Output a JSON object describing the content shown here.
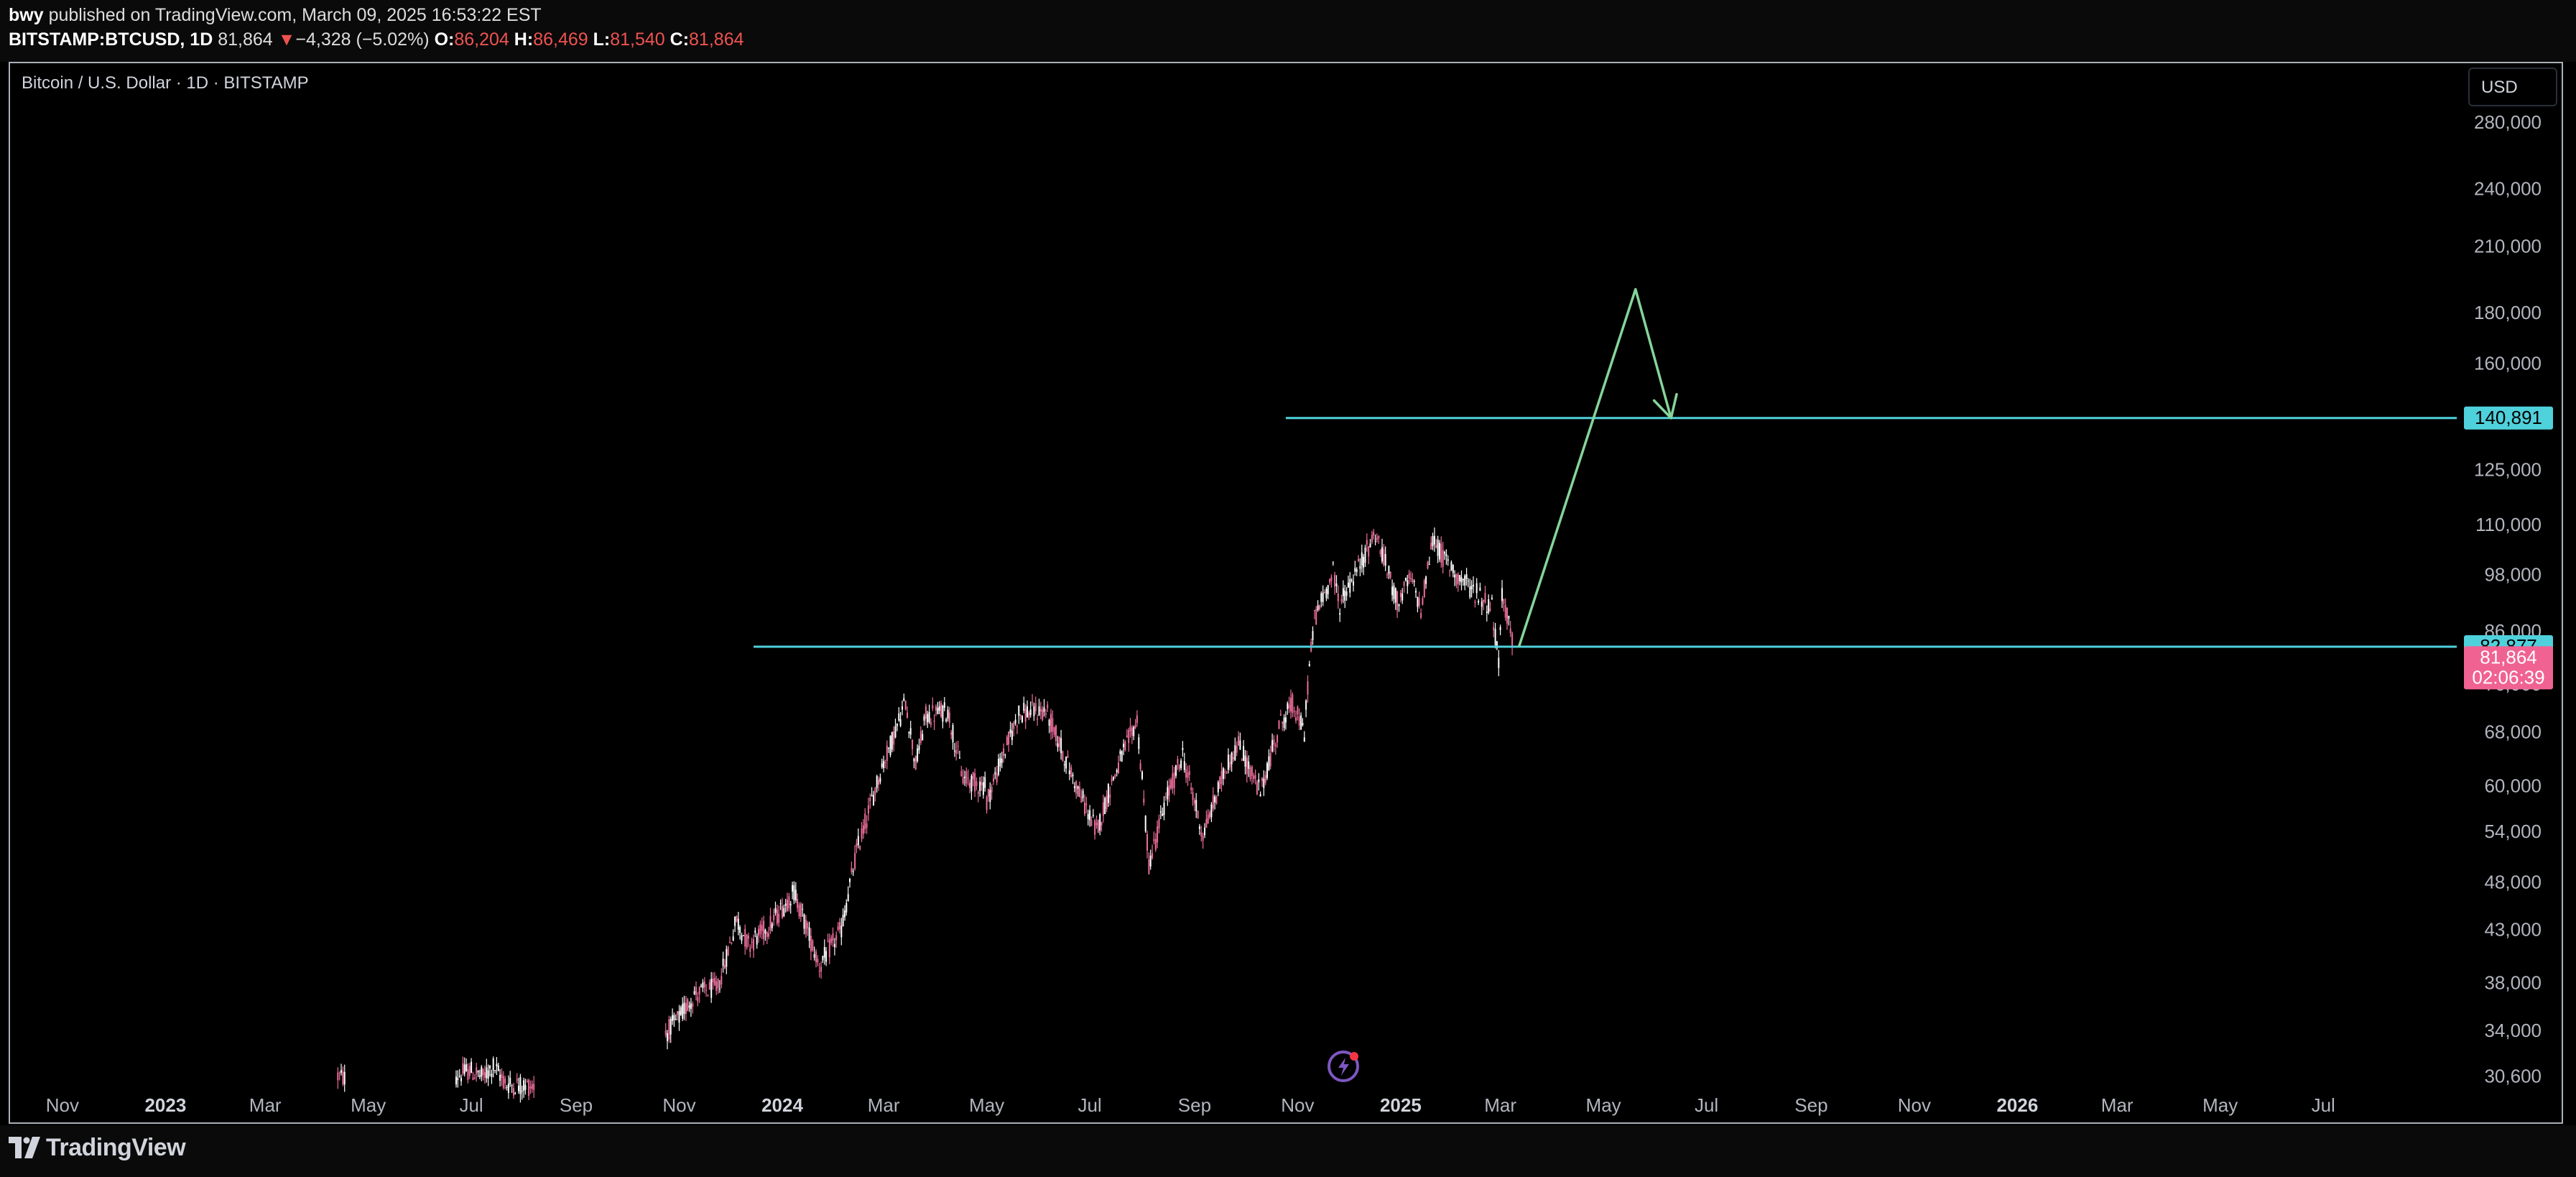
{
  "header": {
    "author": "bwy",
    "published_text": "published on TradingView.com, March 09, 2025 16:53:22 EST",
    "symbol": "BITSTAMP:BTCUSD, 1D",
    "last_price": "81,864",
    "down_arrow": "▼",
    "change": "−4,328 (−5.02%)",
    "open_label": "O:",
    "open_value": "86,204",
    "high_label": "H:",
    "high_value": "86,469",
    "low_label": "L:",
    "low_value": "81,540",
    "close_label": "C:",
    "close_value": "81,864"
  },
  "chart_title": "Bitcoin / U.S. Dollar · 1D · BITSTAMP",
  "currency_button": "USD",
  "footer": {
    "brand": "TradingView"
  },
  "colors": {
    "background": "#000000",
    "level_line": "#4fd1dc",
    "projection": "#86d49a",
    "candle_up": "#ffffff",
    "candle_down": "#ec6d9b",
    "last_price_badge": "#f06292",
    "level_badge": "#4fd1dc"
  },
  "chart_data": {
    "type": "line",
    "title": "Bitcoin / U.S. Dollar · 1D · BITSTAMP",
    "y_scale": "log",
    "ylim": [
      28500,
      320000
    ],
    "xlim": [
      "2022-10-01",
      "2026-08-15"
    ],
    "y_ticks": [
      "30,600",
      "34,000",
      "38,000",
      "43,000",
      "48,000",
      "54,000",
      "60,000",
      "68,000",
      "76,000",
      "86,000",
      "98,000",
      "110,000",
      "125,000",
      "140,000",
      "160,000",
      "180,000",
      "210,000",
      "240,000",
      "280,000"
    ],
    "y_tick_values": [
      30600,
      34000,
      38000,
      43000,
      48000,
      54000,
      60000,
      68000,
      76000,
      86000,
      98000,
      110000,
      125000,
      140000,
      160000,
      180000,
      210000,
      240000,
      280000
    ],
    "x_ticks": [
      {
        "label": "Nov",
        "date": "2022-11-01",
        "bold": false
      },
      {
        "label": "2023",
        "date": "2023-01-01",
        "bold": true
      },
      {
        "label": "Mar",
        "date": "2023-03-01",
        "bold": false
      },
      {
        "label": "May",
        "date": "2023-05-01",
        "bold": false
      },
      {
        "label": "Jul",
        "date": "2023-07-01",
        "bold": false
      },
      {
        "label": "Sep",
        "date": "2023-09-01",
        "bold": false
      },
      {
        "label": "Nov",
        "date": "2023-11-01",
        "bold": false
      },
      {
        "label": "2024",
        "date": "2024-01-01",
        "bold": true
      },
      {
        "label": "Mar",
        "date": "2024-03-01",
        "bold": false
      },
      {
        "label": "May",
        "date": "2024-05-01",
        "bold": false
      },
      {
        "label": "Jul",
        "date": "2024-07-01",
        "bold": false
      },
      {
        "label": "Sep",
        "date": "2024-09-01",
        "bold": false
      },
      {
        "label": "Nov",
        "date": "2024-11-01",
        "bold": false
      },
      {
        "label": "2025",
        "date": "2025-01-01",
        "bold": true
      },
      {
        "label": "Mar",
        "date": "2025-03-01",
        "bold": false
      },
      {
        "label": "May",
        "date": "2025-05-01",
        "bold": false
      },
      {
        "label": "Jul",
        "date": "2025-07-01",
        "bold": false
      },
      {
        "label": "Sep",
        "date": "2025-09-01",
        "bold": false
      },
      {
        "label": "Nov",
        "date": "2025-11-01",
        "bold": false
      },
      {
        "label": "2026",
        "date": "2026-01-01",
        "bold": true
      },
      {
        "label": "Mar",
        "date": "2026-03-01",
        "bold": false
      },
      {
        "label": "May",
        "date": "2026-05-01",
        "bold": false
      },
      {
        "label": "Jul",
        "date": "2026-07-01",
        "bold": false
      }
    ],
    "series": [
      {
        "type": "candlestick",
        "price_points": [
          [
            "2023-04-13",
            30600
          ],
          [
            "2023-04-18",
            30400
          ],
          [
            "2023-06-22",
            30600
          ],
          [
            "2023-06-30",
            31000
          ],
          [
            "2023-07-08",
            30500
          ],
          [
            "2023-07-14",
            31300
          ],
          [
            "2023-07-22",
            30000
          ],
          [
            "2023-08-08",
            29900
          ],
          [
            "2023-10-24",
            33800
          ],
          [
            "2023-11-01",
            35000
          ],
          [
            "2023-11-10",
            37000
          ],
          [
            "2023-11-24",
            37600
          ],
          [
            "2023-12-05",
            44000
          ],
          [
            "2023-12-12",
            41500
          ],
          [
            "2023-12-25",
            43500
          ],
          [
            "2024-01-08",
            47000
          ],
          [
            "2024-01-23",
            39500
          ],
          [
            "2024-02-05",
            43000
          ],
          [
            "2024-02-14",
            51500
          ],
          [
            "2024-02-28",
            62000
          ],
          [
            "2024-03-05",
            66000
          ],
          [
            "2024-03-14",
            73000
          ],
          [
            "2024-03-20",
            63000
          ],
          [
            "2024-03-26",
            70500
          ],
          [
            "2024-04-08",
            71500
          ],
          [
            "2024-04-17",
            61000
          ],
          [
            "2024-04-30",
            60000
          ],
          [
            "2024-05-01",
            58000
          ],
          [
            "2024-05-20",
            71000
          ],
          [
            "2024-06-05",
            71500
          ],
          [
            "2024-06-24",
            59500
          ],
          [
            "2024-07-05",
            54000
          ],
          [
            "2024-07-14",
            60500
          ],
          [
            "2024-07-29",
            70000
          ],
          [
            "2024-08-05",
            50000
          ],
          [
            "2024-08-15",
            58000
          ],
          [
            "2024-08-25",
            64500
          ],
          [
            "2024-09-06",
            53500
          ],
          [
            "2024-09-20",
            63000
          ],
          [
            "2024-09-27",
            66000
          ],
          [
            "2024-10-10",
            59000
          ],
          [
            "2024-10-21",
            69000
          ],
          [
            "2024-10-29",
            72500
          ],
          [
            "2024-11-05",
            67800
          ],
          [
            "2024-11-07",
            76000
          ],
          [
            "2024-11-11",
            88500
          ],
          [
            "2024-11-22",
            98500
          ],
          [
            "2024-11-26",
            91500
          ],
          [
            "2024-12-05",
            98000
          ],
          [
            "2024-12-17",
            108000
          ],
          [
            "2024-12-30",
            92000
          ],
          [
            "2025-01-07",
            97000
          ],
          [
            "2025-01-13",
            90500
          ],
          [
            "2025-01-20",
            106500
          ],
          [
            "2025-01-27",
            101500
          ],
          [
            "2025-02-05",
            97000
          ],
          [
            "2025-02-24",
            91000
          ],
          [
            "2025-02-28",
            79000
          ],
          [
            "2025-03-02",
            94000
          ],
          [
            "2025-03-05",
            89000
          ],
          [
            "2025-03-09",
            81864
          ]
        ]
      }
    ],
    "lines": [
      {
        "name": "resistance",
        "price": 140891,
        "from": "2024-10-25",
        "to": "2026-08-15"
      },
      {
        "name": "support",
        "price": 82877,
        "from": "2023-12-15",
        "to": "2026-08-15"
      }
    ],
    "projection": [
      [
        "2025-03-12",
        82877
      ],
      [
        "2025-05-20",
        190000
      ],
      [
        "2025-06-10",
        140891
      ]
    ],
    "badges": [
      {
        "label": "140,891",
        "price": 140891,
        "color": "#4fd1dc",
        "text_color": "#000000"
      },
      {
        "label": "82,877",
        "price": 82877,
        "color": "#4fd1dc",
        "text_color": "#000000"
      },
      {
        "label": "81,864",
        "price": 81864,
        "color": "#f06292",
        "text_color": "#ffffff",
        "sub_label": "02:06:39"
      }
    ]
  }
}
